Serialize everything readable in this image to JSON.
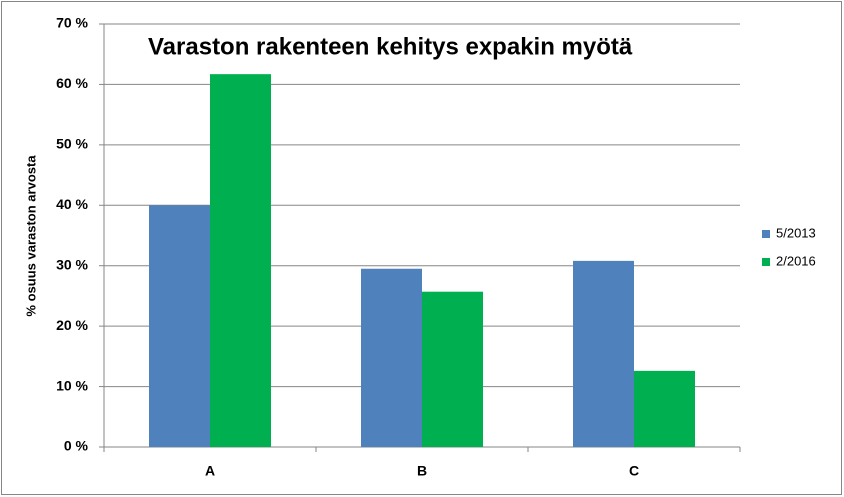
{
  "chart_data": {
    "type": "bar",
    "title": "Varaston rakenteen kehitys expakin myötä",
    "y_label": "% osuus varaston arvosta",
    "categories": [
      "A",
      "B",
      "C"
    ],
    "series": [
      {
        "name": "5/2013",
        "color": "#4f81bd",
        "values": [
          40.0,
          29.5,
          30.8
        ]
      },
      {
        "name": "2/2016",
        "color": "#00b050",
        "values": [
          61.7,
          25.7,
          12.6
        ]
      }
    ],
    "ylim": [
      0,
      70
    ],
    "yticks": [
      {
        "value": 0,
        "label": "0 %"
      },
      {
        "value": 10,
        "label": "10 %"
      },
      {
        "value": 20,
        "label": "20 %"
      },
      {
        "value": 30,
        "label": "30 %"
      },
      {
        "value": 40,
        "label": "40 %"
      },
      {
        "value": 50,
        "label": "50 %"
      },
      {
        "value": 60,
        "label": "60 %"
      },
      {
        "value": 70,
        "label": "70 %"
      }
    ],
    "grid": true,
    "legend": "right"
  }
}
